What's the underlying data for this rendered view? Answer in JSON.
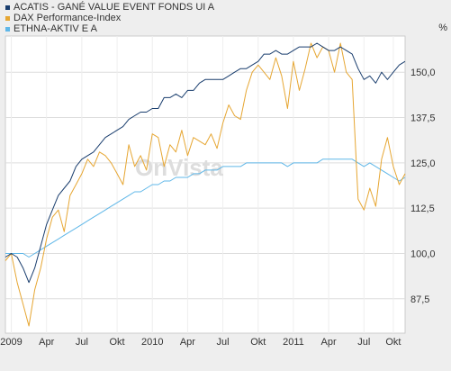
{
  "legend": {
    "items": [
      {
        "label": "ACATIS - GANÉ VALUE EVENT FONDS UI A",
        "color": "#1a3e6e"
      },
      {
        "label": "DAX Performance-Index",
        "color": "#e6a632"
      },
      {
        "label": "ETHNA-AKTIV E A",
        "color": "#5fb7e8"
      }
    ]
  },
  "axis": {
    "unit": "%"
  },
  "watermark": {
    "text": "OnVista"
  },
  "chart_data": {
    "type": "line",
    "ylim": [
      78,
      160
    ],
    "yticks": [
      87.5,
      100.0,
      112.5,
      125.0,
      137.5,
      150.0
    ],
    "ytick_labels": [
      "87,5",
      "100,0",
      "112,5",
      "125,0",
      "137,5",
      "150,0"
    ],
    "x_range": [
      0,
      34
    ],
    "xticks": [
      {
        "x": 0.5,
        "label": "2009"
      },
      {
        "x": 3.5,
        "label": "Apr"
      },
      {
        "x": 6.5,
        "label": "Jul"
      },
      {
        "x": 9.5,
        "label": "Okt"
      },
      {
        "x": 12.5,
        "label": "2010"
      },
      {
        "x": 15.5,
        "label": "Apr"
      },
      {
        "x": 18.5,
        "label": "Jul"
      },
      {
        "x": 21.5,
        "label": "Okt"
      },
      {
        "x": 24.5,
        "label": "2011"
      },
      {
        "x": 27.5,
        "label": "Apr"
      },
      {
        "x": 30.5,
        "label": "Jul"
      },
      {
        "x": 33.0,
        "label": "Okt"
      }
    ],
    "grid": true,
    "legend_position": "top-left",
    "series": [
      {
        "name": "ACATIS - GANÉ VALUE EVENT FONDS UI A",
        "color": "#1a3e6e",
        "x": [
          0,
          0.5,
          1,
          1.5,
          2,
          2.5,
          3,
          3.5,
          4,
          4.5,
          5,
          5.5,
          6,
          6.5,
          7,
          7.5,
          8,
          8.5,
          9,
          9.5,
          10,
          10.5,
          11,
          11.5,
          12,
          12.5,
          13,
          13.5,
          14,
          14.5,
          15,
          15.5,
          16,
          16.5,
          17,
          17.5,
          18,
          18.5,
          19,
          19.5,
          20,
          20.5,
          21,
          21.5,
          22,
          22.5,
          23,
          23.5,
          24,
          24.5,
          25,
          25.5,
          26,
          26.5,
          27,
          27.5,
          28,
          28.5,
          29,
          29.5,
          30,
          30.5,
          31,
          31.5,
          32,
          32.5,
          33,
          33.5,
          34
        ],
        "y": [
          99,
          100,
          99,
          96,
          92,
          96,
          102,
          108,
          112,
          116,
          118,
          120,
          124,
          126,
          127,
          128,
          130,
          132,
          133,
          134,
          135,
          137,
          138,
          139,
          139,
          140,
          140,
          143,
          143,
          144,
          143,
          145,
          145,
          147,
          148,
          148,
          148,
          148,
          149,
          150,
          151,
          151,
          152,
          153,
          155,
          155,
          156,
          155,
          155,
          156,
          157,
          157,
          157,
          158,
          157,
          156,
          156,
          157,
          156,
          155,
          151,
          148,
          149,
          147,
          150,
          148,
          150,
          152,
          153
        ]
      },
      {
        "name": "DAX Performance-Index",
        "color": "#e6a632",
        "x": [
          0,
          0.5,
          1,
          1.5,
          2,
          2.5,
          3,
          3.5,
          4,
          4.5,
          5,
          5.5,
          6,
          6.5,
          7,
          7.5,
          8,
          8.5,
          9,
          9.5,
          10,
          10.5,
          11,
          11.5,
          12,
          12.5,
          13,
          13.5,
          14,
          14.5,
          15,
          15.5,
          16,
          16.5,
          17,
          17.5,
          18,
          18.5,
          19,
          19.5,
          20,
          20.5,
          21,
          21.5,
          22,
          22.5,
          23,
          23.5,
          24,
          24.5,
          25,
          25.5,
          26,
          26.5,
          27,
          27.5,
          28,
          28.5,
          29,
          29.5,
          30,
          30.5,
          31,
          31.5,
          32,
          32.5,
          33,
          33.5,
          34
        ],
        "y": [
          98,
          100,
          92,
          86,
          80,
          90,
          96,
          104,
          110,
          112,
          106,
          116,
          119,
          122,
          126,
          124,
          128,
          127,
          125,
          122,
          119,
          130,
          124,
          127,
          123,
          133,
          132,
          124,
          130,
          128,
          134,
          127,
          132,
          131,
          130,
          133,
          129,
          136,
          141,
          138,
          137,
          145,
          150,
          152,
          150,
          148,
          154,
          149,
          140,
          153,
          145,
          151,
          158,
          154,
          157,
          156,
          150,
          158,
          150,
          148,
          115,
          112,
          118,
          113,
          126,
          132,
          124,
          119,
          122
        ]
      },
      {
        "name": "ETHNA-AKTIV E A",
        "color": "#5fb7e8",
        "x": [
          0,
          0.5,
          1,
          1.5,
          2,
          2.5,
          3,
          3.5,
          4,
          4.5,
          5,
          5.5,
          6,
          6.5,
          7,
          7.5,
          8,
          8.5,
          9,
          9.5,
          10,
          10.5,
          11,
          11.5,
          12,
          12.5,
          13,
          13.5,
          14,
          14.5,
          15,
          15.5,
          16,
          16.5,
          17,
          17.5,
          18,
          18.5,
          19,
          19.5,
          20,
          20.5,
          21,
          21.5,
          22,
          22.5,
          23,
          23.5,
          24,
          24.5,
          25,
          25.5,
          26,
          26.5,
          27,
          27.5,
          28,
          28.5,
          29,
          29.5,
          30,
          30.5,
          31,
          31.5,
          32,
          32.5,
          33,
          33.5,
          34
        ],
        "y": [
          100,
          100,
          100,
          100,
          99,
          100,
          101,
          102,
          103,
          104,
          105,
          106,
          107,
          108,
          109,
          110,
          111,
          112,
          113,
          114,
          115,
          116,
          117,
          117,
          118,
          119,
          119,
          120,
          120,
          121,
          121,
          121,
          122,
          122,
          123,
          123,
          123,
          124,
          124,
          124,
          124,
          125,
          125,
          125,
          125,
          125,
          125,
          125,
          124,
          125,
          125,
          125,
          125,
          125,
          126,
          126,
          126,
          126,
          126,
          126,
          125,
          124,
          125,
          124,
          123,
          122,
          121,
          120,
          121
        ]
      }
    ]
  }
}
